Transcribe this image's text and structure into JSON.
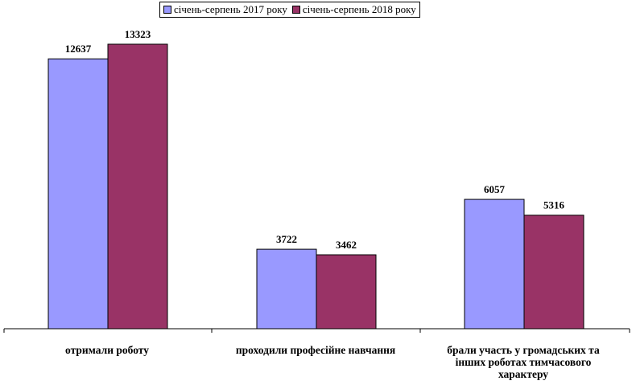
{
  "chart_data": {
    "type": "bar",
    "categories": [
      "отримали роботу",
      "проходили професійне навчання",
      "брали участь у громадських та інших роботах тимчасового характеру"
    ],
    "series": [
      {
        "name": "січень-серпень 2017 року",
        "values": [
          12637,
          3722,
          6057
        ],
        "color": "#9999ff"
      },
      {
        "name": "січень-серпень 2018 року",
        "values": [
          13323,
          3462,
          5316
        ],
        "color": "#993366"
      }
    ],
    "ylim": [
      0,
      14000
    ],
    "grid": false,
    "legend_position": "top-center"
  }
}
